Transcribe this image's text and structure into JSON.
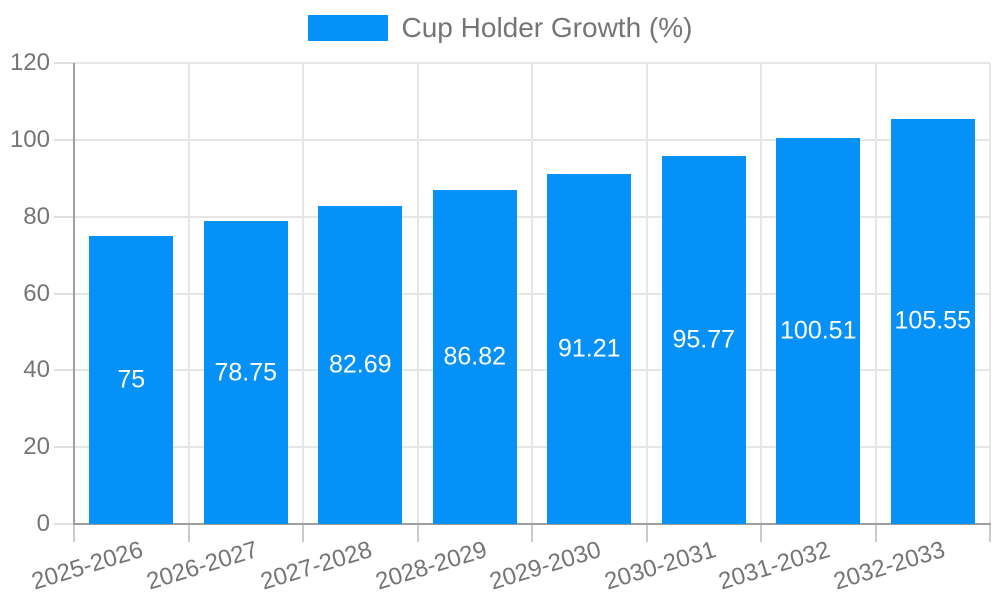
{
  "chart_data": {
    "type": "bar",
    "title": "",
    "xlabel": "",
    "ylabel": "",
    "categories": [
      "2025-2026",
      "2026-2027",
      "2027-2028",
      "2028-2029",
      "2029-2030",
      "2030-2031",
      "2031-2032",
      "2032-2033"
    ],
    "series": [
      {
        "name": "Cup Holder Growth (%)",
        "values": [
          75,
          78.75,
          82.69,
          86.82,
          91.21,
          95.77,
          100.51,
          105.55
        ],
        "value_labels": [
          "75",
          "78.75",
          "82.69",
          "86.82",
          "91.21",
          "95.77",
          "100.51",
          "105.55"
        ],
        "color": "#0691f9"
      }
    ],
    "ylim": [
      0,
      120
    ],
    "yticks": [
      0,
      20,
      40,
      60,
      80,
      100,
      120
    ],
    "grid": true,
    "legend_position": "top",
    "colors": {
      "bar": "#0691f9",
      "axis_text": "#757575",
      "axis_line": "#9e9e9e",
      "gridline": "#e6e6e6",
      "bar_value_text": "#ffffff",
      "background": "#ffffff"
    }
  }
}
